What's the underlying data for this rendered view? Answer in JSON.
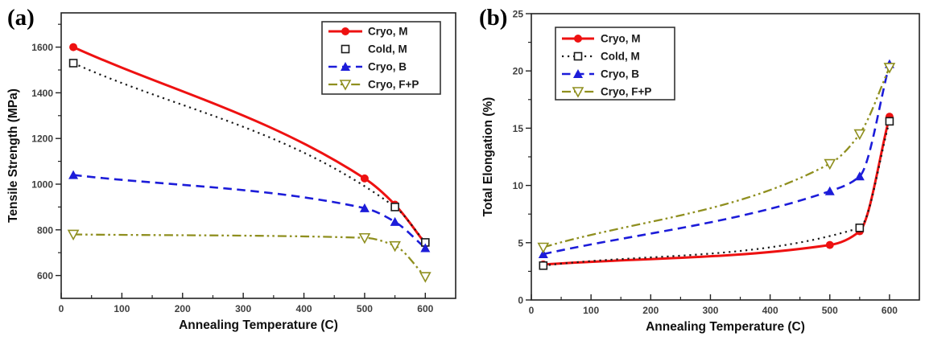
{
  "figure": {
    "background_color": "#ffffff"
  },
  "chart_data": [
    {
      "panel_label": "(a)",
      "type": "line",
      "title": "",
      "xlabel": "Annealing Temperature (C)",
      "ylabel": "Tensile Strength (MPa)",
      "xlim": [
        0,
        650
      ],
      "ylim": [
        500,
        1750
      ],
      "xticks": [
        0,
        100,
        200,
        300,
        400,
        500,
        600
      ],
      "yticks": [
        600,
        800,
        1000,
        1200,
        1400,
        1600
      ],
      "grid": false,
      "legend_position": "top-right",
      "series": [
        {
          "name": "Cryo, M",
          "color": "#ee1111",
          "line": "solid",
          "marker": "circle-filled",
          "x": [
            20,
            500,
            550,
            600
          ],
          "y": [
            1600,
            1025,
            910,
            740
          ]
        },
        {
          "name": "Cold, M",
          "color": "#1a1a1a",
          "line": "dotted",
          "marker": "square-open",
          "legend_sample": "marker-only",
          "x": [
            20,
            550,
            600
          ],
          "y": [
            1530,
            900,
            745
          ]
        },
        {
          "name": "Cryo, B",
          "color": "#1c1cd9",
          "line": "dashed",
          "marker": "triangle-up-filled",
          "x": [
            20,
            500,
            550,
            600
          ],
          "y": [
            1040,
            895,
            835,
            720
          ]
        },
        {
          "name": "Cryo, F+P",
          "color": "#8f8f1f",
          "line": "dash-dot-dot",
          "marker": "triangle-down-open",
          "x": [
            20,
            500,
            550,
            600
          ],
          "y": [
            780,
            765,
            730,
            595
          ]
        }
      ]
    },
    {
      "panel_label": "(b)",
      "type": "line",
      "title": "",
      "xlabel": "Annealing Temperature (C)",
      "ylabel": "Total Elongation (%)",
      "xlim": [
        0,
        650
      ],
      "ylim": [
        0,
        25
      ],
      "xticks": [
        0,
        100,
        200,
        300,
        400,
        500,
        600
      ],
      "yticks": [
        0,
        5,
        10,
        15,
        20,
        25
      ],
      "grid": false,
      "legend_position": "top-left",
      "series": [
        {
          "name": "Cryo, M",
          "color": "#ee1111",
          "line": "solid",
          "marker": "circle-filled",
          "x": [
            20,
            500,
            550,
            600
          ],
          "y": [
            3.1,
            4.8,
            6.0,
            16.0
          ]
        },
        {
          "name": "Cold, M",
          "color": "#1a1a1a",
          "line": "dotted",
          "marker": "square-open",
          "x": [
            20,
            550,
            600
          ],
          "y": [
            3.0,
            6.3,
            15.6
          ]
        },
        {
          "name": "Cryo, B",
          "color": "#1c1cd9",
          "line": "dashed",
          "marker": "triangle-up-filled",
          "x": [
            20,
            500,
            550,
            600
          ],
          "y": [
            4.0,
            9.5,
            10.8,
            20.6
          ]
        },
        {
          "name": "Cryo, F+P",
          "color": "#8f8f1f",
          "line": "dash-dot-dot",
          "marker": "triangle-down-open",
          "x": [
            20,
            500,
            550,
            600
          ],
          "y": [
            4.6,
            11.9,
            14.5,
            20.3
          ]
        }
      ]
    }
  ]
}
